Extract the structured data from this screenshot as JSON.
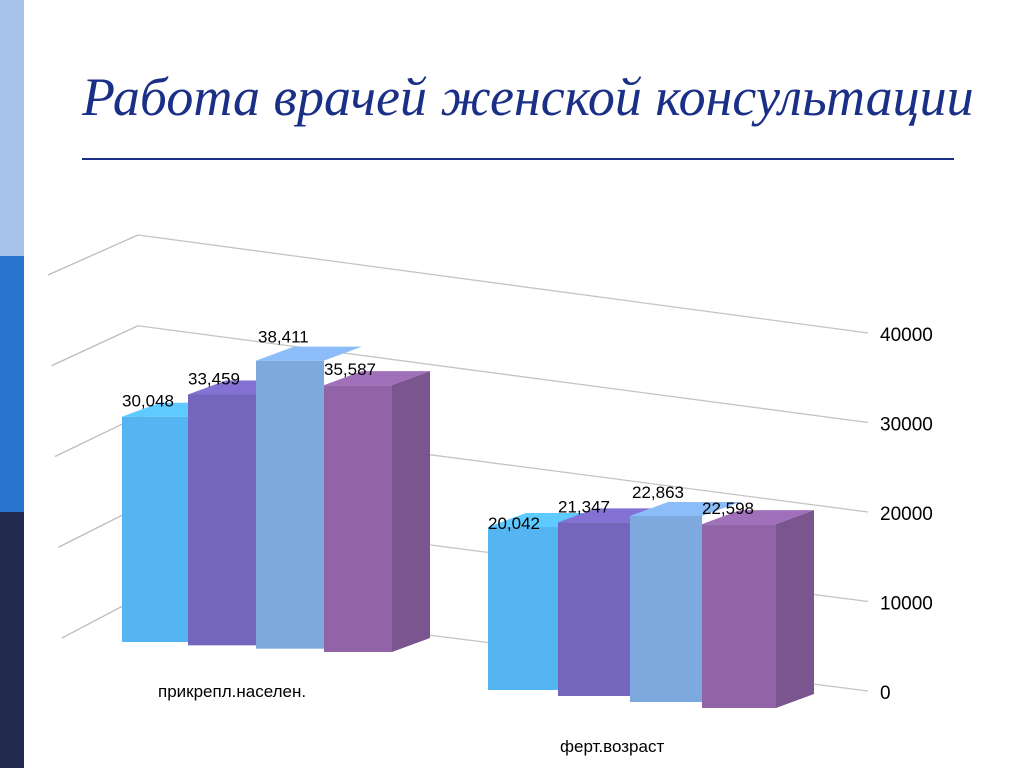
{
  "slide": {
    "title": "Работа врачей женской консультации",
    "band_colors": [
      "#a8c4ec",
      "#2874cc",
      "#232a4f"
    ],
    "title_color": "#1a2f86"
  },
  "chart_data": {
    "type": "bar",
    "title": "",
    "xlabel": "",
    "ylabel": "",
    "categories": [
      "прикрепл.населен.",
      "ферт.возраст"
    ],
    "series": [
      {
        "color": "#55b4f2",
        "values": [
          30048,
          20042
        ]
      },
      {
        "color": "#7566bd",
        "values": [
          33459,
          21347
        ]
      },
      {
        "color": "#7ea9de",
        "values": [
          38411,
          22863
        ]
      },
      {
        "color": "#9064a7",
        "values": [
          35587,
          22598
        ]
      }
    ],
    "data_labels": [
      [
        "30,048",
        "20,042"
      ],
      [
        "33,459",
        "21,347"
      ],
      [
        "38,411",
        "22,863"
      ],
      [
        "35,587",
        "22,598"
      ]
    ],
    "ylim": [
      0,
      40000
    ],
    "y_ticks": [
      "0",
      "10000",
      "20000",
      "30000",
      "40000"
    ],
    "y_axis_side": "right",
    "grid": true,
    "legend": "none",
    "style": "3d-columns"
  }
}
